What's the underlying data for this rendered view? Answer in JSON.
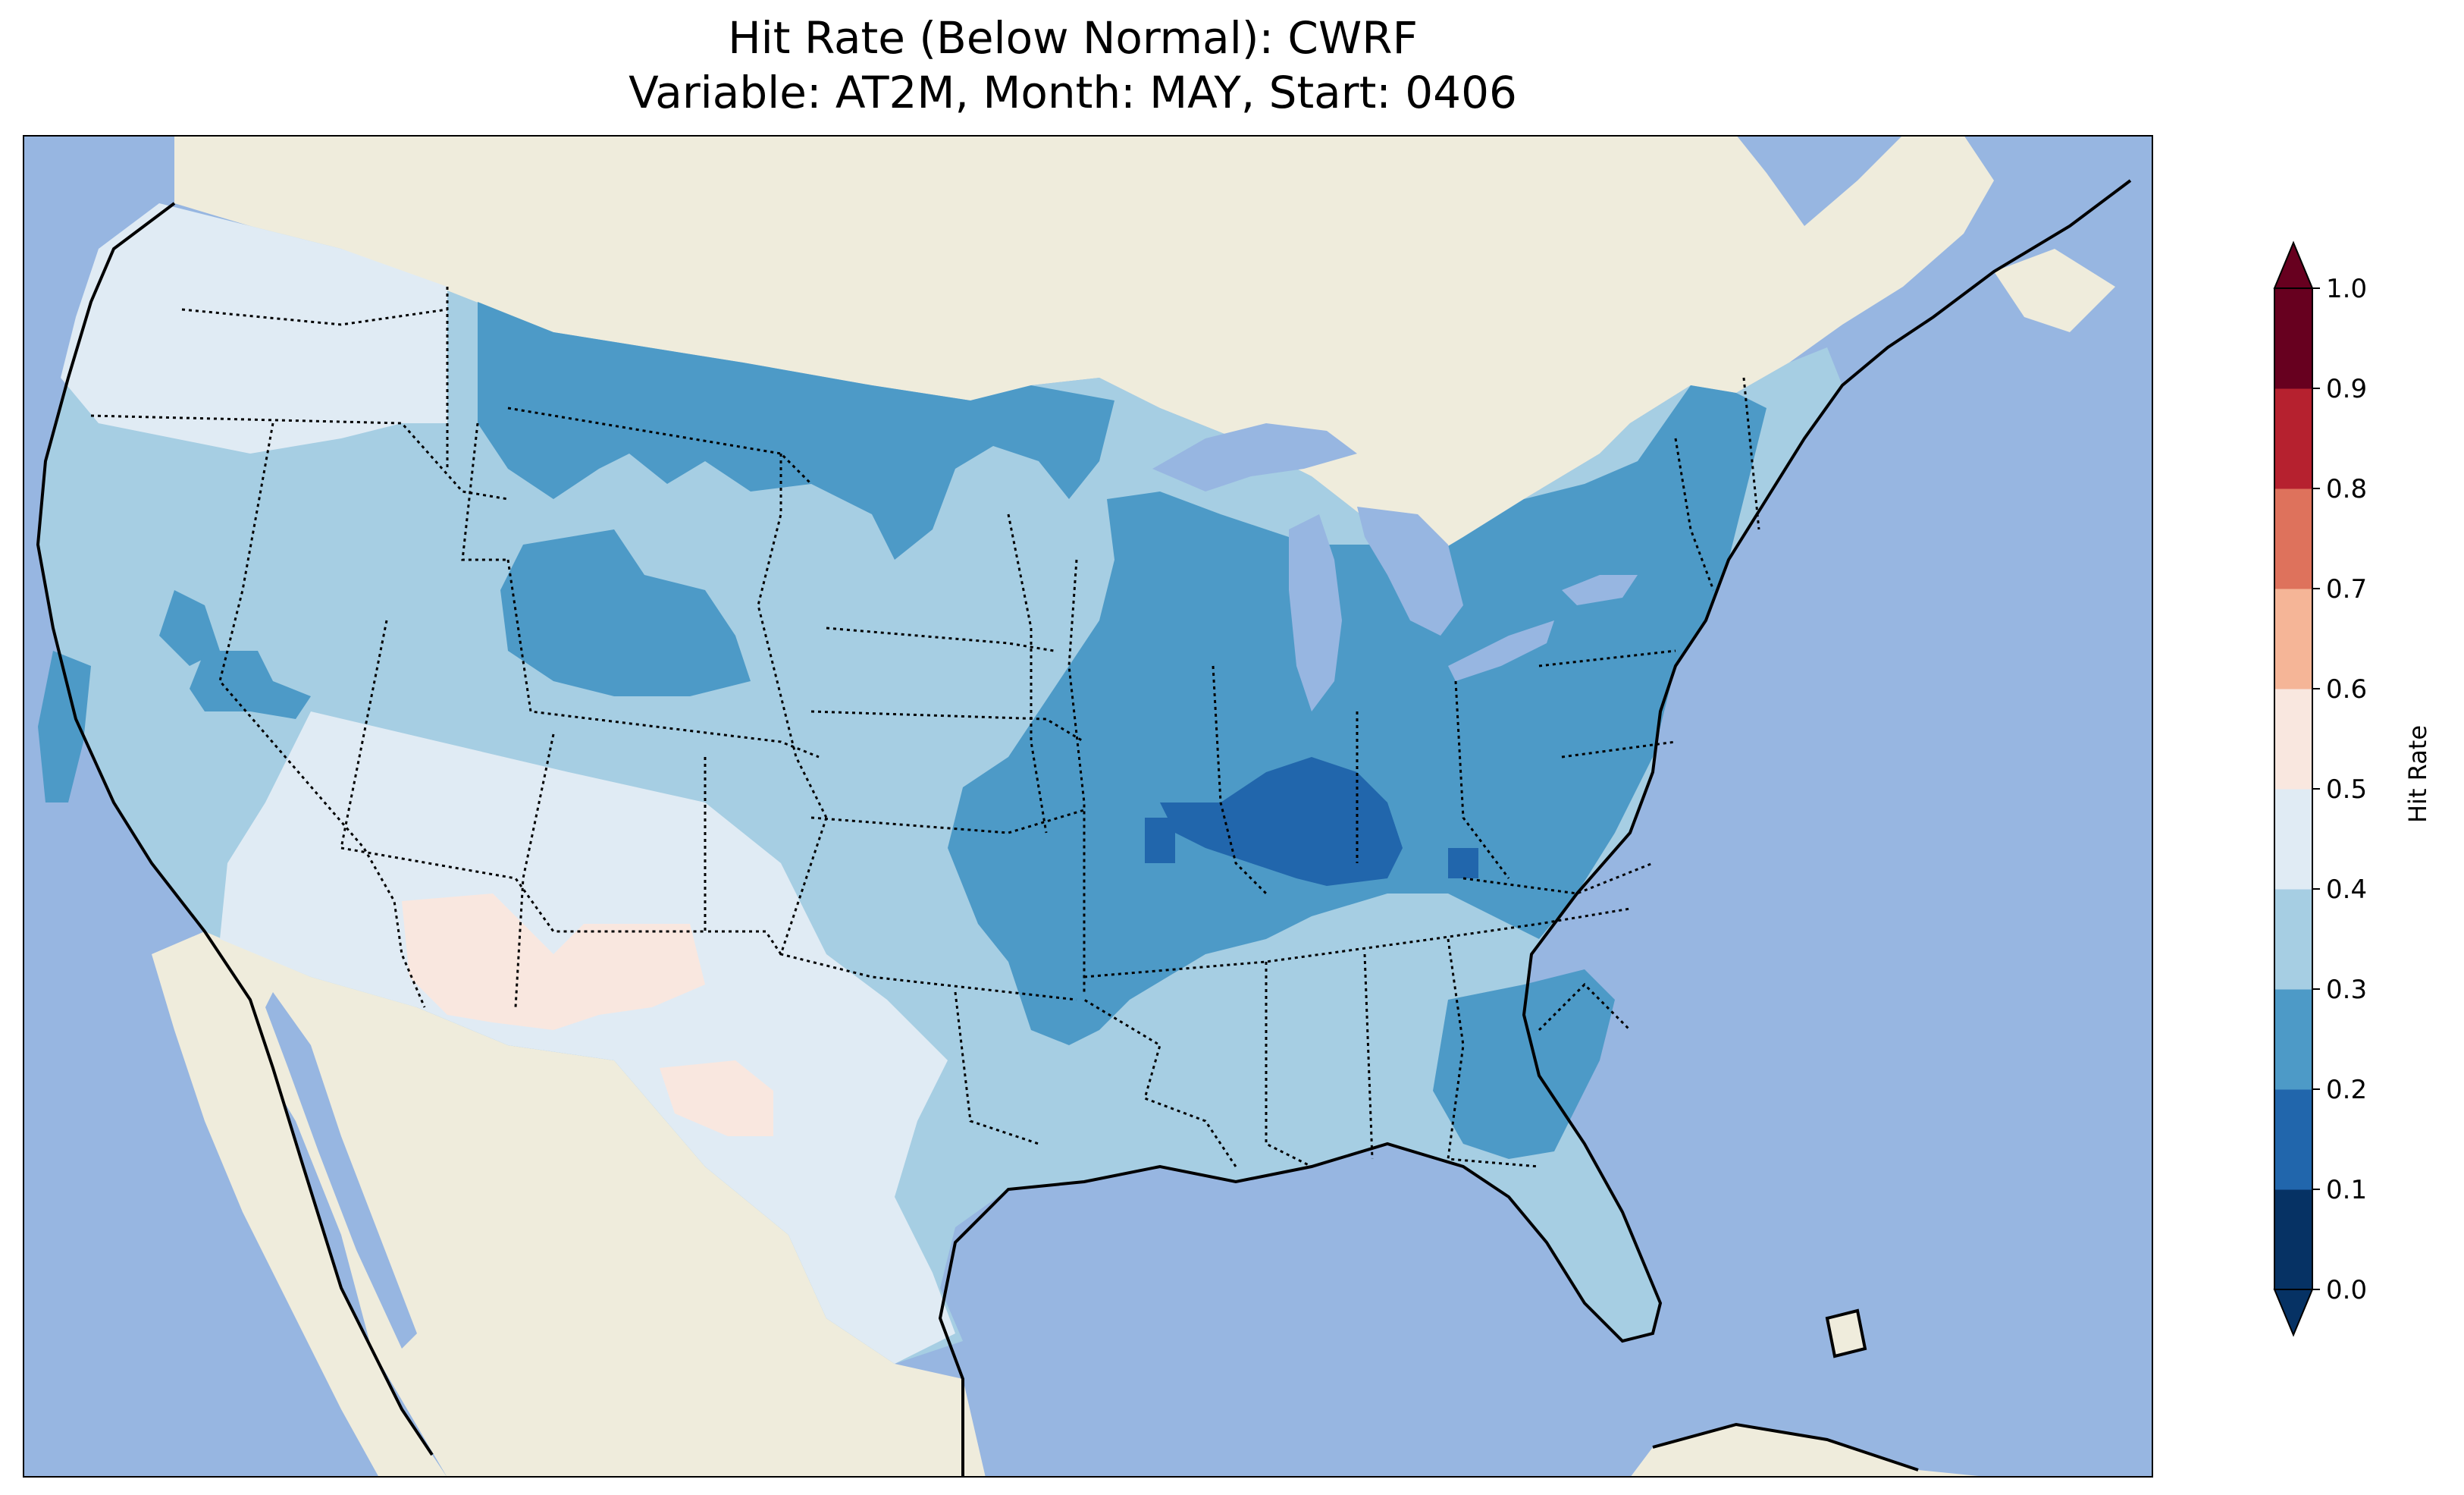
{
  "figure": {
    "title_line1": "Hit Rate (Below Normal): CWRF",
    "title_line2": "Variable: AT2M, Month: MAY, Start: 0406"
  },
  "map": {
    "ocean_color": "#97b6e1",
    "land_color": "#efecdc",
    "coastline_color": "#000000",
    "regions": [
      {
        "name": "pacific-northwest",
        "category": "0.4–0.5"
      },
      {
        "name": "california-nevada",
        "category": "0.3–0.4"
      },
      {
        "name": "northern-plains",
        "category": "0.2–0.3"
      },
      {
        "name": "central-plains",
        "category": "0.3–0.4"
      },
      {
        "name": "ohio-valley",
        "category": "0.1–0.2"
      },
      {
        "name": "midwest-northeast",
        "category": "0.2–0.3"
      },
      {
        "name": "southwest",
        "category": "0.4–0.5"
      },
      {
        "name": "arizona-new-mexico-patch",
        "category": "0.5–0.6"
      },
      {
        "name": "gulf-southeast",
        "category": "0.3–0.4"
      },
      {
        "name": "georgia-carolinas",
        "category": "0.2–0.3"
      }
    ]
  },
  "colorbar": {
    "label": "Hit Rate",
    "ticks": [
      "0.0",
      "0.1",
      "0.2",
      "0.3",
      "0.4",
      "0.5",
      "0.6",
      "0.7",
      "0.8",
      "0.9",
      "1.0"
    ],
    "bins": [
      {
        "range": "0.0–0.1",
        "color": "#063264"
      },
      {
        "range": "0.1–0.2",
        "color": "#2166ac"
      },
      {
        "range": "0.2–0.3",
        "color": "#4d9ac7"
      },
      {
        "range": "0.3–0.4",
        "color": "#a6cee3"
      },
      {
        "range": "0.4–0.5",
        "color": "#e0ebf4"
      },
      {
        "range": "0.5–0.6",
        "color": "#f9e7df"
      },
      {
        "range": "0.6–0.7",
        "color": "#f5b597"
      },
      {
        "range": "0.7–0.8",
        "color": "#de725c"
      },
      {
        "range": "0.8–0.9",
        "color": "#b6212f"
      },
      {
        "range": "0.9–1.0",
        "color": "#67001f"
      }
    ],
    "extend": "both"
  }
}
